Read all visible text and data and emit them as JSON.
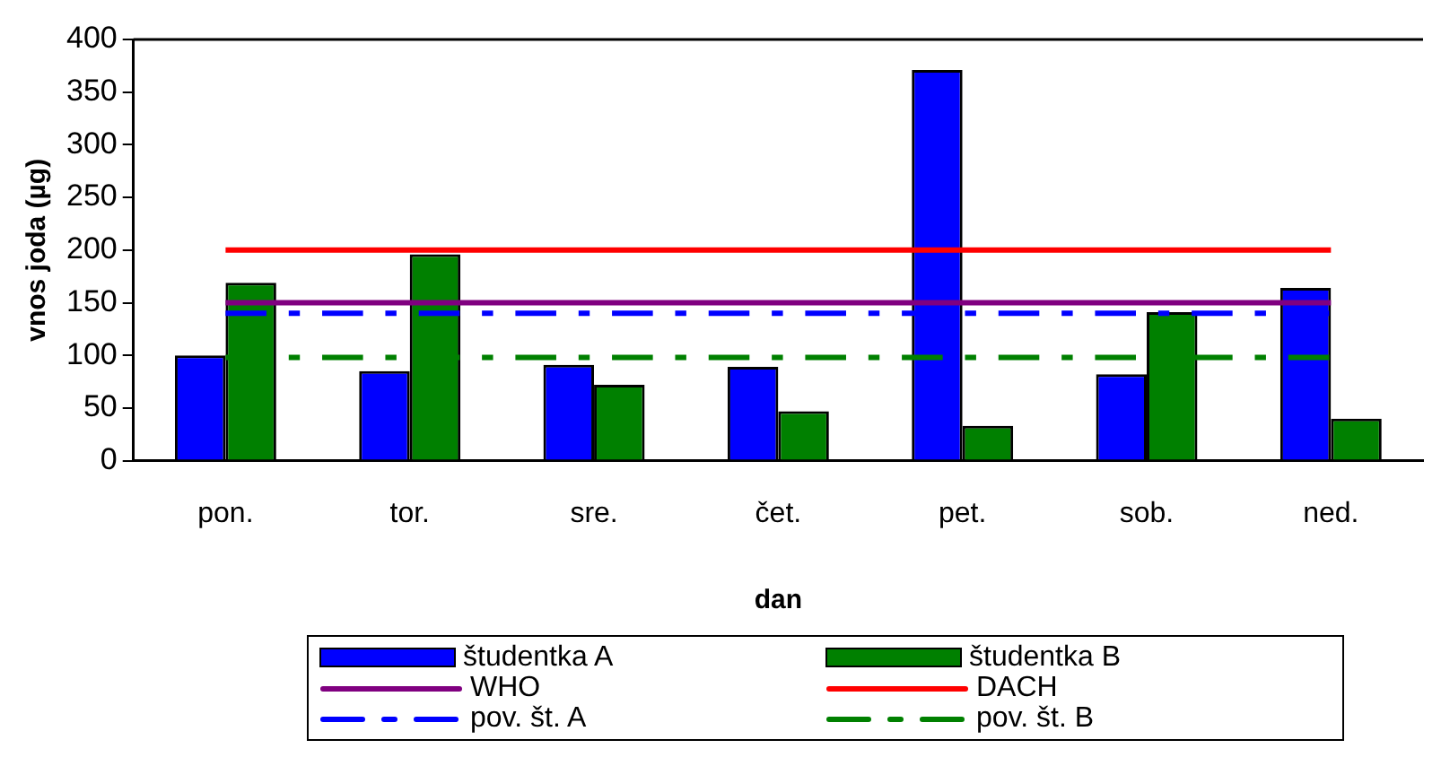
{
  "chart_data": {
    "type": "bar",
    "xlabel": "dan",
    "ylabel": "vnos joda (µg)",
    "categories": [
      "pon.",
      "tor.",
      "sre.",
      "čet.",
      "pet.",
      "sob.",
      "ned."
    ],
    "ylim": [
      0,
      400
    ],
    "yticks": [
      0,
      50,
      100,
      150,
      200,
      250,
      300,
      350,
      400
    ],
    "grid": false,
    "legend": "bottom",
    "marker": "none",
    "series": [
      {
        "name": "študentka A",
        "color": "#0000ff",
        "values": [
          100,
          85,
          91,
          89,
          371,
          82,
          164
        ]
      },
      {
        "name": "študentka B",
        "color": "#008000",
        "values": [
          169,
          196,
          72,
          47,
          33,
          141,
          40
        ]
      },
      {
        "name": "WHO",
        "type": "line",
        "color": "#800080",
        "line_style": "solid",
        "values": [
          150,
          150,
          150,
          150,
          150,
          150,
          150
        ]
      },
      {
        "name": "DACH",
        "type": "line",
        "color": "#ff0000",
        "line_style": "solid",
        "values": [
          200,
          200,
          200,
          200,
          200,
          200,
          200
        ]
      },
      {
        "name": "pov. št. A",
        "type": "line",
        "color": "#0000ff",
        "line_style": "dashed",
        "values": [
          140,
          140,
          140,
          140,
          140,
          140,
          140
        ]
      },
      {
        "name": "pov. št. B",
        "type": "line",
        "color": "#008000",
        "line_style": "dashed",
        "values": [
          98,
          98,
          98,
          98,
          98,
          98,
          98
        ]
      }
    ]
  }
}
